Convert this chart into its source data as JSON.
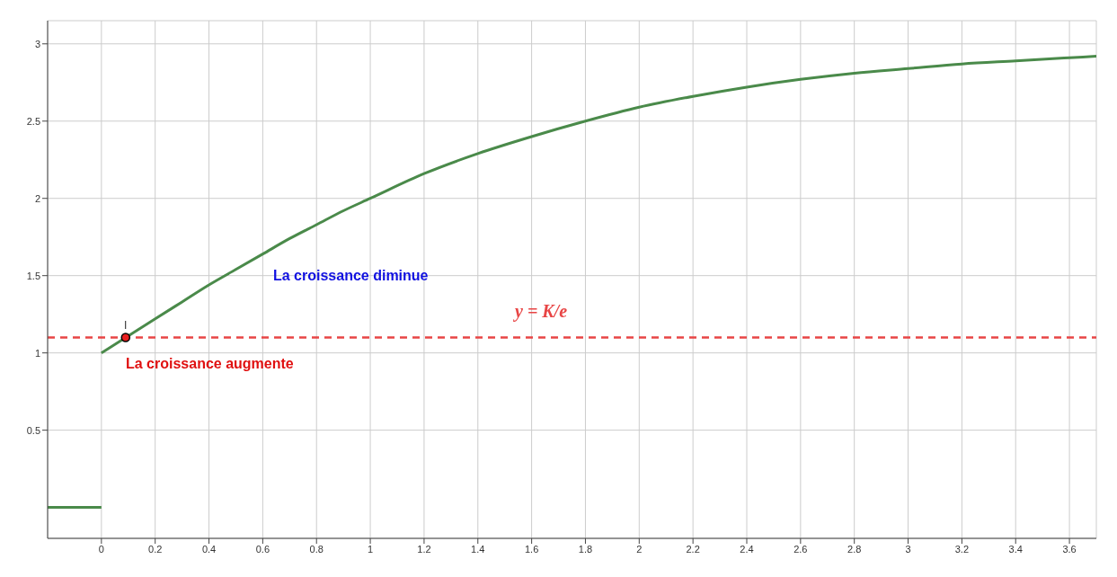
{
  "chart_data": {
    "type": "line",
    "xlim": [
      -0.2,
      3.7
    ],
    "ylim": [
      -0.2,
      3.15
    ],
    "xticks": [
      0,
      0.2,
      0.4,
      0.6,
      0.8,
      1,
      1.2,
      1.4,
      1.6,
      1.8,
      2,
      2.2,
      2.4,
      2.6,
      2.8,
      3,
      3.2,
      3.4,
      3.6
    ],
    "yticks": [
      0.5,
      1,
      1.5,
      2,
      2.5,
      3
    ],
    "grid": true,
    "line_style": "solid",
    "series": [
      {
        "color": "#4a8a4a",
        "marker": "none",
        "x": [
          -0.2,
          0
        ],
        "values": [
          0,
          0
        ]
      },
      {
        "color": "#4a8a4a",
        "marker": "none",
        "x": [
          0,
          0.1,
          0.2,
          0.3,
          0.4,
          0.5,
          0.6,
          0.7,
          0.8,
          0.9,
          1,
          1.2,
          1.4,
          1.6,
          1.8,
          2,
          2.2,
          2.4,
          2.6,
          2.8,
          3,
          3.2,
          3.4,
          3.6,
          3.7
        ],
        "values": [
          1,
          1.11,
          1.22,
          1.33,
          1.44,
          1.54,
          1.64,
          1.74,
          1.83,
          1.92,
          2,
          2.16,
          2.29,
          2.4,
          2.5,
          2.59,
          2.66,
          2.72,
          2.77,
          2.81,
          2.84,
          2.87,
          2.89,
          2.91,
          2.92
        ]
      },
      {
        "type": "scatter",
        "name": "I",
        "color": "#e82020",
        "marker": "circle",
        "x": [
          0.09
        ],
        "values": [
          1.1
        ]
      }
    ],
    "ref_lines": [
      {
        "axis": "y",
        "value": 1.1,
        "label": "y = K/e",
        "color": "#e84545",
        "line_style": "dashed"
      }
    ],
    "annotations": [
      "La croissance diminue",
      "La croissance augmente"
    ]
  }
}
